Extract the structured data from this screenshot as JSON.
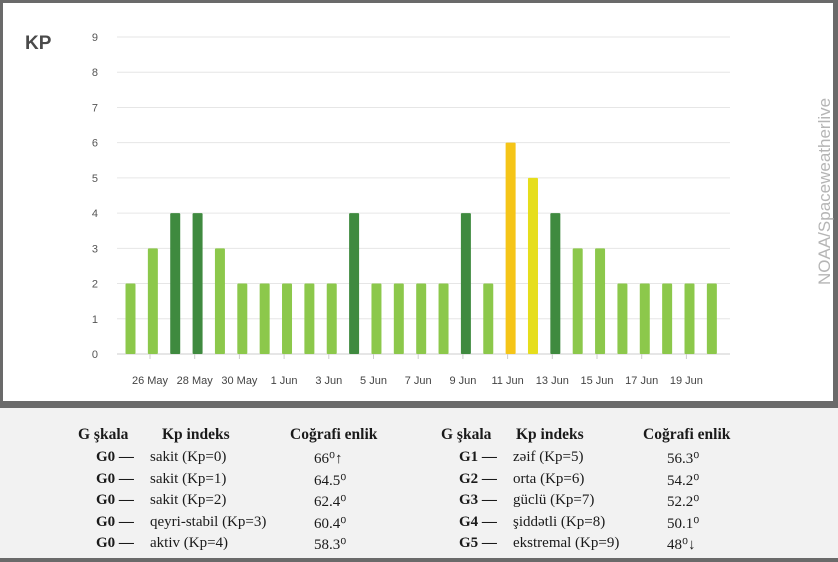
{
  "chart_data": {
    "type": "bar",
    "title": "KP",
    "source": "NOAA/Spaceweatherlive",
    "ylim": [
      0,
      9
    ],
    "yticks": [
      "0",
      "1",
      "2",
      "3",
      "4",
      "5",
      "6",
      "7",
      "8",
      "9"
    ],
    "x_tick_labels": [
      "26 May",
      "28 May",
      "30 May",
      "1 Jun",
      "3 Jun",
      "5 Jun",
      "7 Jun",
      "9 Jun",
      "11 Jun",
      "13 Jun",
      "15 Jun",
      "17 Jun",
      "19 Jun"
    ],
    "values": [
      2,
      3,
      4,
      4,
      3,
      2,
      2,
      2,
      2,
      2,
      4,
      2,
      2,
      2,
      2,
      4,
      2,
      6,
      5,
      4,
      3,
      3,
      2,
      2,
      2,
      2,
      2
    ],
    "colors": {
      "low": "#8cc84b",
      "active": "#3f8a3f",
      "g2": "#f5c518",
      "g1": "#e6de1c",
      "grid": "#e6e6e6",
      "axis": "#cccccc"
    },
    "bar_levels": [
      "low",
      "low",
      "active",
      "active",
      "low",
      "low",
      "low",
      "low",
      "low",
      "low",
      "active",
      "low",
      "low",
      "low",
      "low",
      "active",
      "low",
      "g2",
      "g1",
      "active",
      "low",
      "low",
      "low",
      "low",
      "low",
      "low",
      "low"
    ]
  },
  "table": {
    "left": {
      "headers": [
        "G şkala",
        "Kp indeks",
        "Coğrafi enlik"
      ],
      "rows": [
        {
          "g": "G0 —",
          "desc": "sakit (Kp=0)",
          "lat": "66⁰↑"
        },
        {
          "g": "G0 —",
          "desc": "sakit (Kp=1)",
          "lat": "64.5⁰"
        },
        {
          "g": "G0 —",
          "desc": "sakit (Kp=2)",
          "lat": "62.4⁰"
        },
        {
          "g": "G0 —",
          "desc": "qeyri-stabil (Kp=3)",
          "lat": "60.4⁰"
        },
        {
          "g": "G0 —",
          "desc": "aktiv (Kp=4)",
          "lat": "58.3⁰"
        }
      ]
    },
    "right": {
      "headers": [
        "G şkala",
        "Kp indeks",
        "Coğrafi enlik"
      ],
      "rows": [
        {
          "g": "G1 —",
          "desc": "zəif (Kp=5)",
          "lat": "56.3⁰"
        },
        {
          "g": "G2 —",
          "desc": "orta (Kp=6)",
          "lat": "54.2⁰"
        },
        {
          "g": "G3 —",
          "desc": "güclü (Kp=7)",
          "lat": "52.2⁰"
        },
        {
          "g": "G4 —",
          "desc": "şiddətli (Kp=8)",
          "lat": "50.1⁰"
        },
        {
          "g": "G5 —",
          "desc": "ekstremal (Kp=9)",
          "lat": "48⁰↓"
        }
      ]
    }
  }
}
